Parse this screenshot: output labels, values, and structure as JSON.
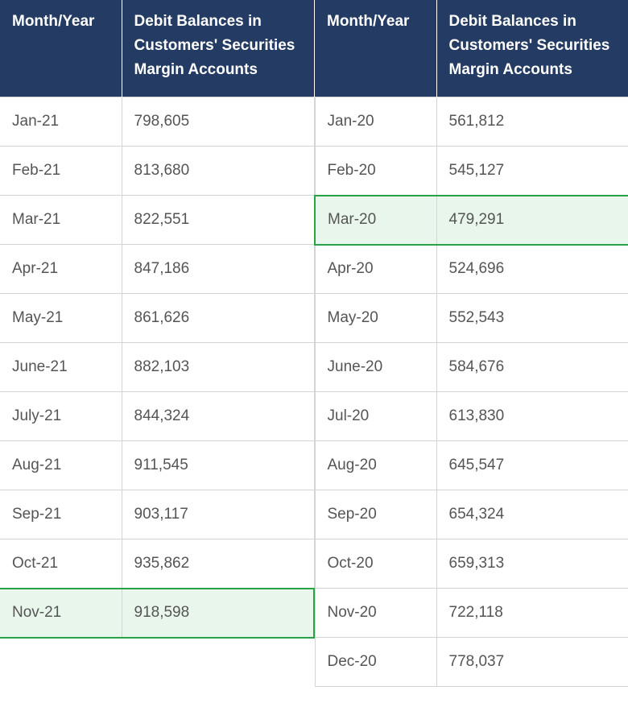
{
  "headers": {
    "month": "Month/Year",
    "balance": "Debit Balances in Customers' Securities Margin Accounts"
  },
  "left_rows": [
    {
      "month": "Jan-21",
      "value": "798,605"
    },
    {
      "month": "Feb-21",
      "value": "813,680"
    },
    {
      "month": "Mar-21",
      "value": "822,551"
    },
    {
      "month": "Apr-21",
      "value": "847,186"
    },
    {
      "month": "May-21",
      "value": "861,626"
    },
    {
      "month": "June-21",
      "value": "882,103"
    },
    {
      "month": "July-21",
      "value": "844,324"
    },
    {
      "month": "Aug-21",
      "value": "911,545"
    },
    {
      "month": "Sep-21",
      "value": "903,117"
    },
    {
      "month": "Oct-21",
      "value": "935,862"
    },
    {
      "month": "Nov-21",
      "value": "918,598"
    }
  ],
  "right_rows": [
    {
      "month": "Jan-20",
      "value": "561,812"
    },
    {
      "month": "Feb-20",
      "value": "545,127"
    },
    {
      "month": "Mar-20",
      "value": "479,291"
    },
    {
      "month": "Apr-20",
      "value": "524,696"
    },
    {
      "month": "May-20",
      "value": "552,543"
    },
    {
      "month": "June-20",
      "value": "584,676"
    },
    {
      "month": "Jul-20",
      "value": "613,830"
    },
    {
      "month": "Aug-20",
      "value": "645,547"
    },
    {
      "month": "Sep-20",
      "value": "654,324"
    },
    {
      "month": "Oct-20",
      "value": "659,313"
    },
    {
      "month": "Nov-20",
      "value": "722,118"
    },
    {
      "month": "Dec-20",
      "value": "778,037"
    }
  ],
  "highlight": {
    "left_month": "Nov-21",
    "right_month": "Mar-20",
    "color": "#2aa248",
    "fill": "#e9f6ec"
  },
  "colors": {
    "header_bg": "#243b63",
    "header_text": "#ffffff",
    "cell_text": "#555555",
    "border": "#d4d4d4"
  }
}
